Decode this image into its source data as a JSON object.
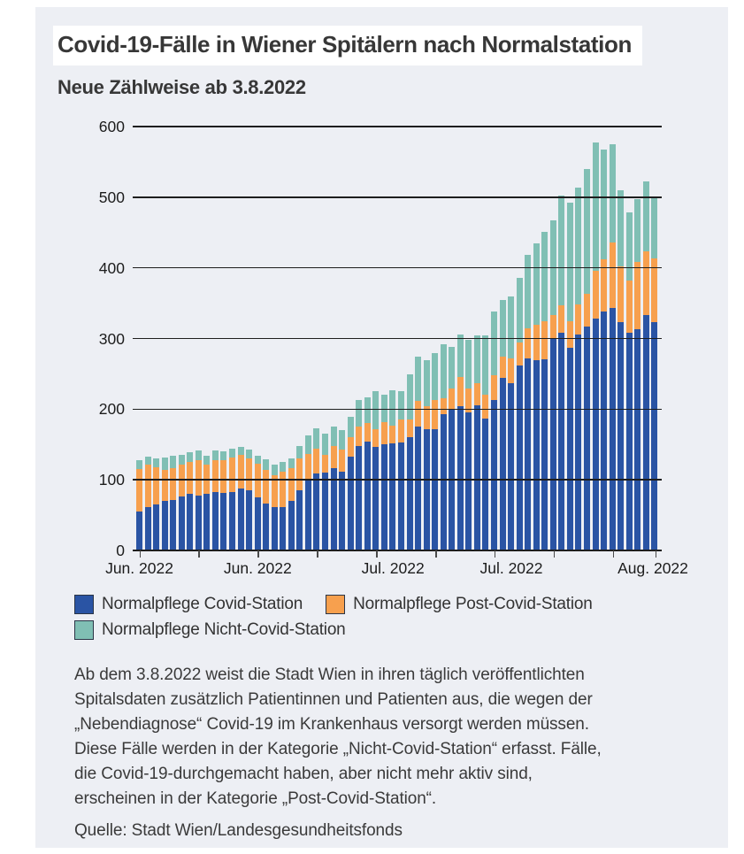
{
  "title": "Covid-19-Fälle in Wiener Spitälern nach Normalstation",
  "subtitle": "Neue Zählweise ab 3.8.2022",
  "legend": [
    {
      "label": "Normalpflege Covid-Station",
      "color": "#2a54a4"
    },
    {
      "label": "Normalpflege Post-Covid-Station",
      "color": "#f7a04e"
    },
    {
      "label": "Normalpflege Nicht-Covid-Station",
      "color": "#80bfb4"
    }
  ],
  "note": "Ab dem 3.8.2022 weist die Stadt Wien in ihren täglich veröffentlichten\nSpitalsdaten zusätzlich Patientinnen und Patienten aus, die wegen der\n„Nebendiagnose“ Covid-19 im Krankenhaus versorgt werden müssen.\nDiese Fälle werden in der Kategorie „Nicht-Covid-Station“ erfasst. Fälle,\ndie Covid-19-durchgemacht haben, aber nicht mehr aktiv sind,\nerscheinen in der Kategorie „Post-Covid-Station“.",
  "source": "Quelle: Stadt Wien/Landesgesundheitsfonds",
  "colors": {
    "panel_bg": "#edeff4",
    "grid": "#1e1e1e",
    "covid": "#2a54a4",
    "post_covid": "#f7a04e",
    "nicht_covid": "#80bfb4"
  },
  "chart_data": {
    "type": "bar",
    "stacked": true,
    "title": "Covid-19-Fälle in Wiener Spitälern nach Normalstation",
    "subtitle": "Neue Zählweise ab 3.8.2022",
    "n_bars": 62,
    "ylim": [
      0,
      600
    ],
    "yticks": [
      0,
      100,
      200,
      300,
      400,
      500,
      600
    ],
    "grid": true,
    "legend_position": "bottom",
    "x_tick_bars": [
      1,
      8,
      15,
      22,
      29,
      36,
      43,
      50,
      57,
      62
    ],
    "x_labels": [
      {
        "bar": 1,
        "label": "Jun. 2022"
      },
      {
        "bar": 15,
        "label": "Jun. 2022"
      },
      {
        "bar": 31,
        "label": "Jul. 2022"
      },
      {
        "bar": 45,
        "label": "Jul. 2022"
      },
      {
        "bar": 62,
        "label": "Aug. 2022"
      }
    ],
    "series": [
      {
        "name": "Normalpflege Covid-Station",
        "color": "#2a54a4",
        "values": [
          55,
          61,
          65,
          70,
          71,
          76,
          80,
          78,
          80,
          83,
          81,
          83,
          88,
          85,
          75,
          67,
          62,
          62,
          70,
          85,
          100,
          109,
          110,
          116,
          111,
          133,
          148,
          154,
          146,
          151,
          152,
          153,
          160,
          176,
          172,
          172,
          193,
          201,
          204,
          195,
          205,
          187,
          213,
          244,
          237,
          262,
          272,
          269,
          271,
          300,
          308,
          287,
          306,
          317,
          328,
          338,
          343,
          323,
          308,
          313,
          333,
          323
        ]
      },
      {
        "name": "Normalpflege Post-Covid-Station",
        "color": "#f7a04e",
        "values": [
          60,
          60,
          53,
          44,
          45,
          45,
          45,
          50,
          41,
          45,
          47,
          49,
          47,
          45,
          48,
          47,
          45,
          50,
          46,
          45,
          37,
          35,
          25,
          32,
          32,
          27,
          27,
          26,
          26,
          31,
          25,
          32,
          26,
          36,
          32,
          41,
          23,
          28,
          41,
          34,
          32,
          34,
          35,
          30,
          35,
          33,
          43,
          50,
          54,
          33,
          39,
          38,
          42,
          46,
          68,
          74,
          93,
          79,
          74,
          95,
          90,
          90
        ]
      },
      {
        "name": "Normalpflege Nicht-Covid-Station",
        "color": "#80bfb4",
        "values": [
          13,
          12,
          12,
          17,
          18,
          14,
          14,
          13,
          13,
          13,
          12,
          12,
          11,
          13,
          11,
          15,
          15,
          13,
          14,
          18,
          26,
          29,
          31,
          28,
          28,
          29,
          38,
          37,
          54,
          39,
          50,
          41,
          63,
          63,
          65,
          66,
          76,
          59,
          61,
          69,
          68,
          84,
          91,
          80,
          87,
          91,
          104,
          116,
          126,
          134,
          155,
          167,
          166,
          177,
          181,
          155,
          139,
          108,
          97,
          89,
          99,
          88
        ]
      }
    ]
  }
}
